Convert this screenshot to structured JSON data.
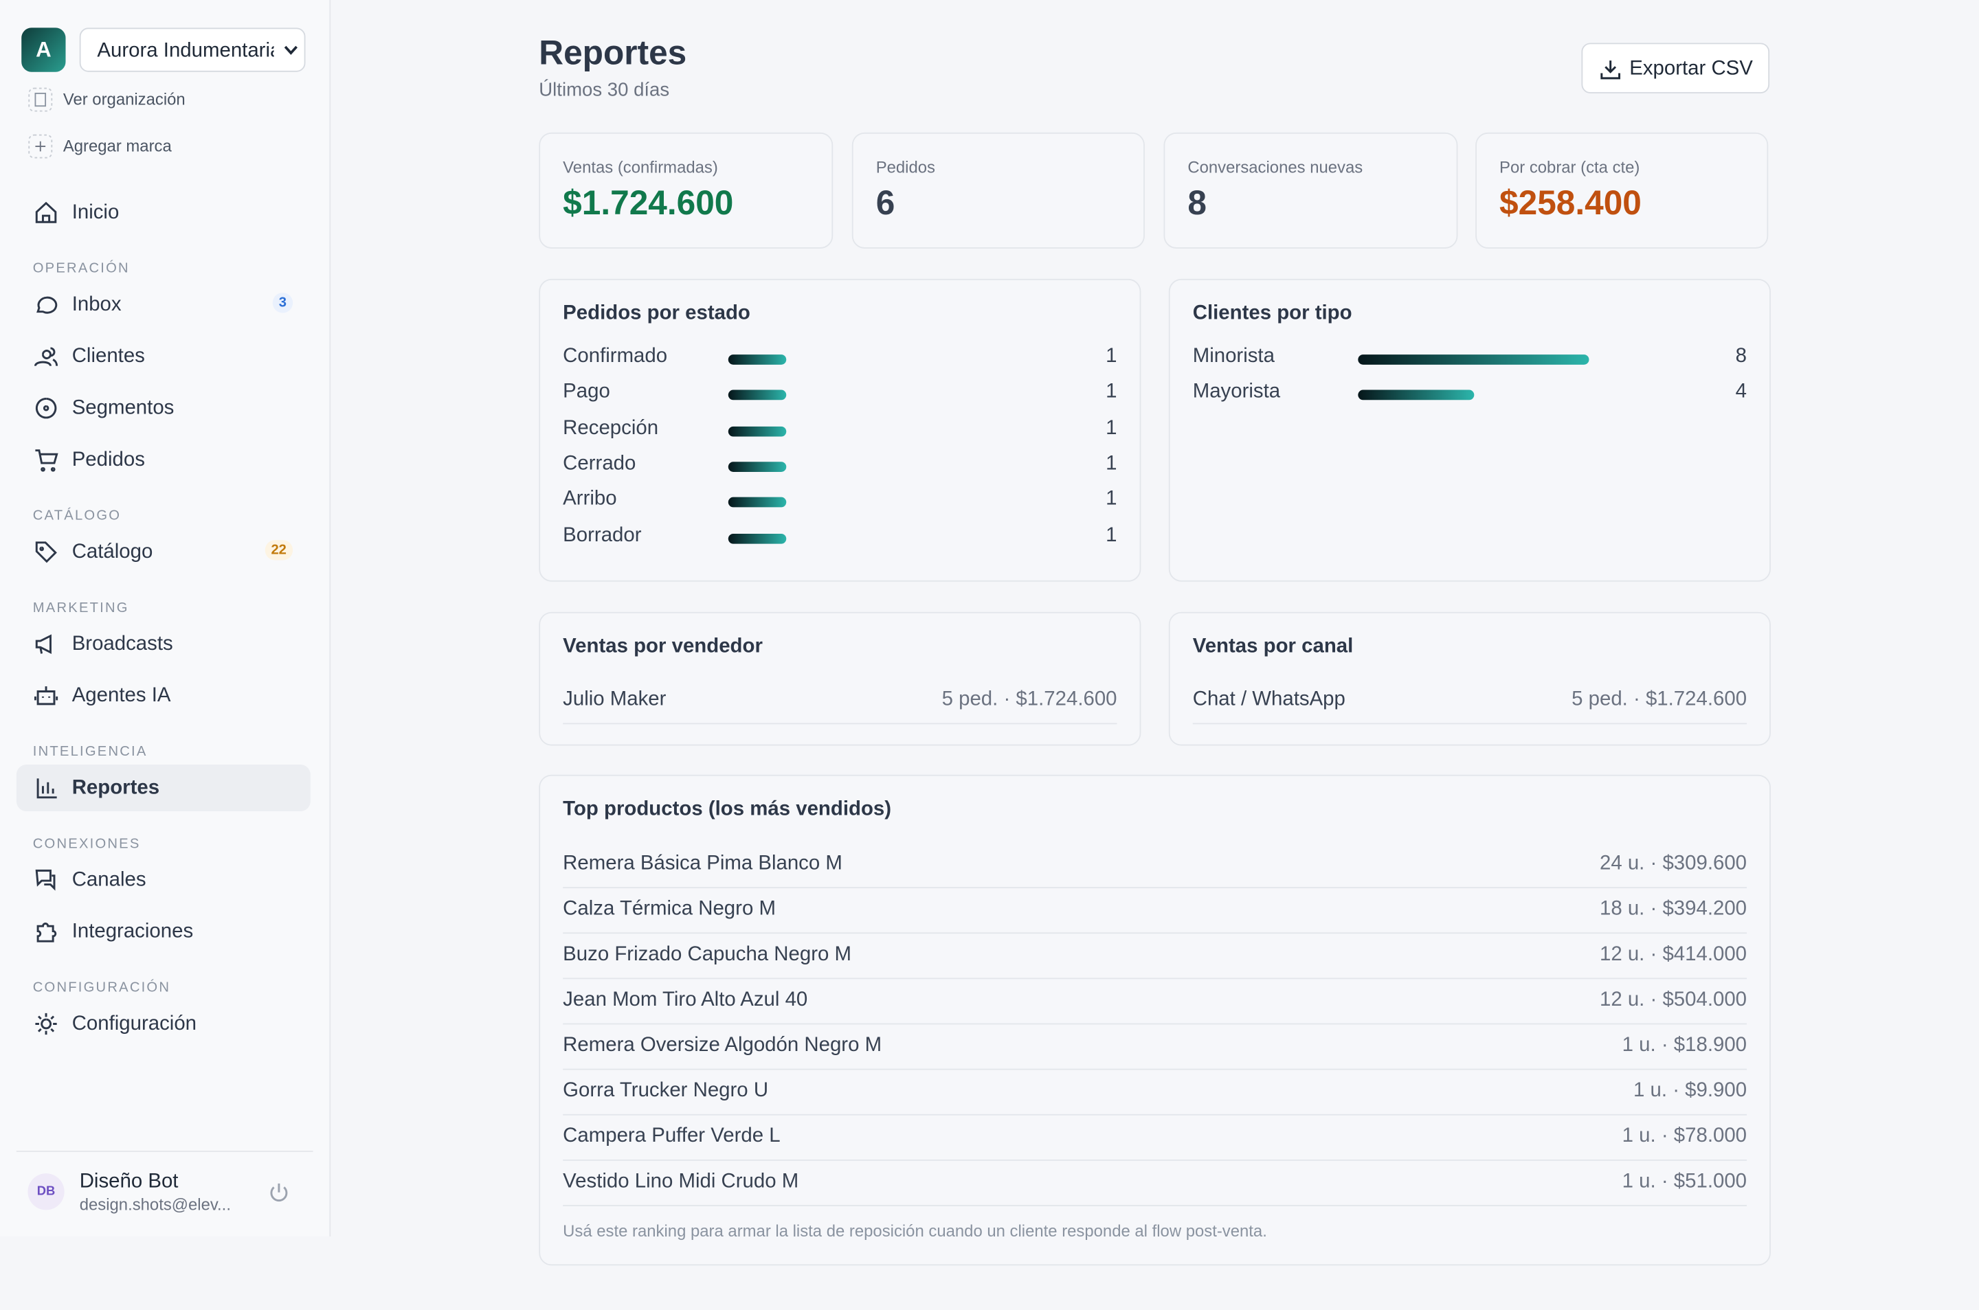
{
  "sidebar": {
    "org_initial": "A",
    "org_name": "Aurora Indumentaria",
    "links": [
      "Ver organización",
      "Agregar marca"
    ],
    "home": "Inicio",
    "sections": [
      {
        "heading": "OPERACIÓN",
        "items": [
          {
            "label": "Inbox",
            "badge": 3
          },
          {
            "label": "Clientes"
          },
          {
            "label": "Segmentos"
          },
          {
            "label": "Pedidos"
          }
        ]
      },
      {
        "heading": "CATÁLOGO",
        "items": [
          {
            "label": "Catálogo",
            "badge": 22
          }
        ]
      },
      {
        "heading": "MARKETING",
        "items": [
          {
            "label": "Broadcasts"
          },
          {
            "label": "Agentes IA"
          }
        ]
      },
      {
        "heading": "INTELIGENCIA",
        "items": [
          {
            "label": "Reportes",
            "active": true
          }
        ]
      },
      {
        "heading": "CONEXIONES",
        "items": [
          {
            "label": "Canales"
          },
          {
            "label": "Integraciones"
          }
        ]
      },
      {
        "heading": "CONFIGURACIÓN",
        "items": [
          {
            "label": "Configuración"
          }
        ]
      }
    ],
    "user": {
      "initials": "DB",
      "name": "Diseño Bot",
      "email": "design.shots@elev..."
    }
  },
  "header": {
    "title": "Reportes",
    "subtitle": "Últimos 30 días",
    "export_button": "Exportar CSV"
  },
  "kpis": [
    {
      "label": "Ventas (confirmadas)",
      "value": "$1.724.600",
      "color": "#11794c"
    },
    {
      "label": "Pedidos",
      "value": 6,
      "color": "#374151"
    },
    {
      "label": "Conversaciones nuevas",
      "value": 8,
      "color": "#374151"
    },
    {
      "label": "Por cobrar (cta cte)",
      "value": "$258.400",
      "color": "#c0500f"
    }
  ],
  "orders_by_status": {
    "title": "Pedidos por estado",
    "rows": [
      {
        "label": "Confirmado",
        "value": 1
      },
      {
        "label": "Pago",
        "value": 1
      },
      {
        "label": "Recepción",
        "value": 1
      },
      {
        "label": "Cerrado",
        "value": 1
      },
      {
        "label": "Arribo",
        "value": 1
      },
      {
        "label": "Borrador",
        "value": 1
      }
    ]
  },
  "clients_by_type": {
    "title": "Clientes por tipo",
    "rows": [
      {
        "label": "Minorista",
        "value": 8
      },
      {
        "label": "Mayorista",
        "value": 4
      }
    ]
  },
  "sales_by_seller": {
    "title": "Ventas por vendedor",
    "rows": [
      {
        "name": "Julio Maker",
        "detail": "5 ped. · $1.724.600"
      }
    ]
  },
  "sales_by_channel": {
    "title": "Ventas por canal",
    "rows": [
      {
        "name": "Chat / WhatsApp",
        "detail": "5 ped. · $1.724.600"
      }
    ]
  },
  "top_products": {
    "title": "Top productos (los más vendidos)",
    "rows": [
      {
        "name": "Remera Básica Pima Blanco M",
        "detail": "24 u. · $309.600"
      },
      {
        "name": "Calza Térmica Negro M",
        "detail": "18 u. · $394.200"
      },
      {
        "name": "Buzo Frizado Capucha Negro M",
        "detail": "12 u. · $414.000"
      },
      {
        "name": "Jean Mom Tiro Alto Azul 40",
        "detail": "12 u. · $504.000"
      },
      {
        "name": "Remera Oversize Algodón Negro M",
        "detail": "1 u. · $18.900"
      },
      {
        "name": "Gorra Trucker Negro U",
        "detail": "1 u. · $9.900"
      },
      {
        "name": "Campera Puffer Verde L",
        "detail": "1 u. · $78.000"
      },
      {
        "name": "Vestido Lino Midi Crudo M",
        "detail": "1 u. · $51.000"
      }
    ],
    "note": "Usá este ranking para armar la lista de reposición cuando un cliente responde al flow post-venta."
  }
}
